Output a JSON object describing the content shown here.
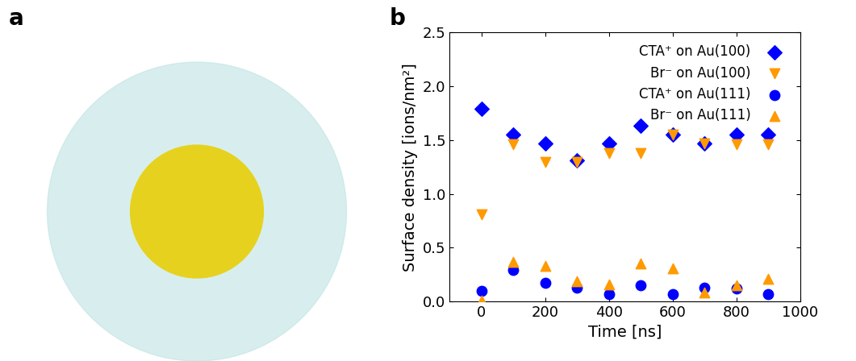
{
  "panel_labels": [
    "a",
    "b"
  ],
  "chart_data": {
    "type": "scatter",
    "x_label": "Time [ns]",
    "y_label": "Surface density [ions/nm²]",
    "x": [
      0,
      100,
      200,
      300,
      400,
      500,
      600,
      700,
      800,
      900
    ],
    "xlim": [
      -100,
      1000
    ],
    "xticks": [
      0,
      200,
      400,
      600,
      800,
      1000
    ],
    "ylim": [
      0,
      2.5
    ],
    "yticks": [
      {
        "value": 0,
        "label": "0.0"
      },
      {
        "value": 0.5,
        "label": "0.5"
      },
      {
        "value": 1.0,
        "label": "1.0"
      },
      {
        "value": 1.5,
        "label": "1.5"
      },
      {
        "value": 2.0,
        "label": "2.0"
      },
      {
        "value": 2.5,
        "label": "2.5"
      }
    ],
    "grid": false,
    "legend": "upper right",
    "series": [
      {
        "name": "CTA⁺ on Au(100)",
        "color": "#0000ff",
        "marker": "diamond",
        "values": [
          1.79,
          1.55,
          1.47,
          1.31,
          1.47,
          1.63,
          1.55,
          1.47,
          1.55,
          1.55
        ]
      },
      {
        "name": "Br⁻ on Au(100)",
        "color": "#ff9a00",
        "marker": "triangle_down",
        "values": [
          0.81,
          1.46,
          1.3,
          1.3,
          1.38,
          1.38,
          1.55,
          1.47,
          1.46,
          1.46
        ]
      },
      {
        "name": "CTA⁺ on Au(111)",
        "color": "#0000ff",
        "marker": "circle",
        "values": [
          0.1,
          0.29,
          0.17,
          0.13,
          0.07,
          0.15,
          0.07,
          0.13,
          0.12,
          0.07
        ]
      },
      {
        "name": "Br⁻ on Au(111)",
        "color": "#ff9a00",
        "marker": "triangle_up",
        "values": [
          0.01,
          0.37,
          0.33,
          0.19,
          0.16,
          0.35,
          0.31,
          0.08,
          0.15,
          0.21
        ]
      }
    ]
  }
}
